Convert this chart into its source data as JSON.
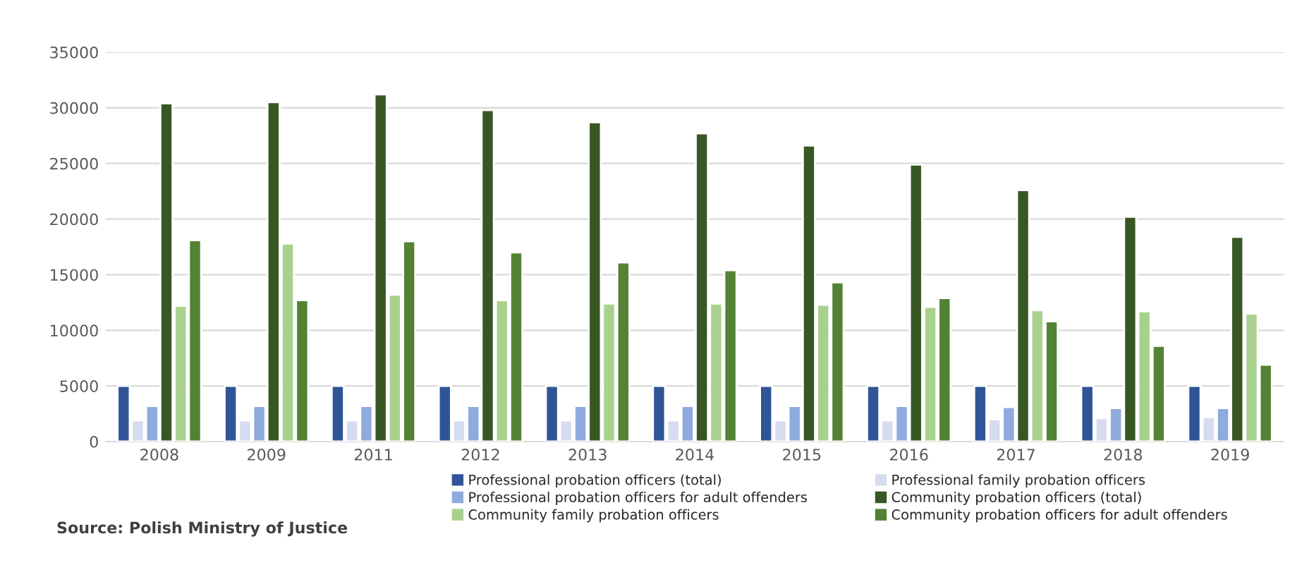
{
  "chart_data": {
    "type": "bar",
    "categories": [
      "2008",
      "2009",
      "2011",
      "2012",
      "2013",
      "2014",
      "2015",
      "2016",
      "2017",
      "2018",
      "2019"
    ],
    "series": [
      {
        "name": "Professional probation officers (total)",
        "color": "#2f5597",
        "values": [
          5000,
          5000,
          5000,
          5000,
          5000,
          5000,
          5000,
          5000,
          5000,
          5000,
          5000
        ]
      },
      {
        "name": "Professional family probation officers",
        "color": "#d6dcef",
        "values": [
          1900,
          1900,
          1900,
          1900,
          1900,
          1900,
          1900,
          1900,
          2000,
          2100,
          2200
        ]
      },
      {
        "name": "Professional probation officers for adult offenders",
        "color": "#8faadc",
        "values": [
          3200,
          3200,
          3200,
          3200,
          3200,
          3200,
          3200,
          3200,
          3100,
          3000,
          3000
        ]
      },
      {
        "name": "Community probation officers (total)",
        "color": "#385723",
        "values": [
          30400,
          30500,
          31200,
          29800,
          28700,
          27700,
          26600,
          24900,
          22600,
          20200,
          18400
        ]
      },
      {
        "name": "Community family probation officers",
        "color": "#a9d18e",
        "values": [
          12200,
          17800,
          13200,
          12700,
          12400,
          12400,
          12300,
          12100,
          11800,
          11700,
          11500
        ]
      },
      {
        "name": "Community probation officers for adult offenders",
        "color": "#548235",
        "values": [
          18100,
          12700,
          18000,
          17000,
          16100,
          15400,
          14300,
          12900,
          10800,
          8600,
          6900
        ]
      }
    ],
    "ylim": [
      0,
      35000
    ],
    "yticks": [
      0,
      5000,
      10000,
      15000,
      20000,
      25000,
      30000,
      35000
    ],
    "grid": "y",
    "legend": "bottom",
    "annotations": [
      "Source: Polish Ministry of Justice"
    ]
  }
}
